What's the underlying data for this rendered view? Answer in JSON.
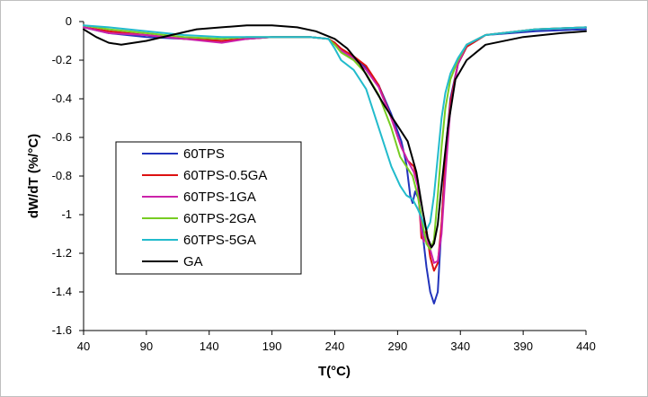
{
  "chart_data": {
    "type": "line",
    "title": "",
    "xlabel": "T(°C)",
    "ylabel": "dW/dT (%/°C)",
    "xlim": [
      40,
      440
    ],
    "ylim": [
      -1.6,
      0
    ],
    "x_ticks": [
      40,
      90,
      140,
      190,
      240,
      290,
      340,
      390,
      440
    ],
    "x_tick_labels": [
      "40",
      "90",
      "140",
      "190",
      "240",
      "290",
      "340",
      "390",
      "440"
    ],
    "y_ticks": [
      0,
      -0.2,
      -0.4,
      -0.6,
      -0.8,
      -1,
      -1.2,
      -1.4,
      -1.6
    ],
    "y_tick_labels": [
      "0",
      "-0.2",
      "-0.4",
      "-0.6",
      "-0.8",
      "-1",
      "-1.2",
      "-1.4",
      "-1.6"
    ],
    "grid": false,
    "legend_position": "left-center",
    "series": [
      {
        "name": "60TPS",
        "color": "#2233bb",
        "points": [
          [
            40,
            -0.03
          ],
          [
            60,
            -0.06
          ],
          [
            90,
            -0.08
          ],
          [
            120,
            -0.09
          ],
          [
            150,
            -0.1
          ],
          [
            170,
            -0.09
          ],
          [
            190,
            -0.08
          ],
          [
            220,
            -0.08
          ],
          [
            235,
            -0.09
          ],
          [
            240,
            -0.11
          ],
          [
            245,
            -0.15
          ],
          [
            255,
            -0.19
          ],
          [
            265,
            -0.24
          ],
          [
            275,
            -0.33
          ],
          [
            285,
            -0.48
          ],
          [
            293,
            -0.62
          ],
          [
            297,
            -0.74
          ],
          [
            300,
            -0.9
          ],
          [
            302,
            -0.94
          ],
          [
            304,
            -0.88
          ],
          [
            307,
            -0.92
          ],
          [
            310,
            -1.1
          ],
          [
            313,
            -1.27
          ],
          [
            316,
            -1.4
          ],
          [
            319,
            -1.46
          ],
          [
            322,
            -1.4
          ],
          [
            325,
            -1.05
          ],
          [
            328,
            -0.7
          ],
          [
            332,
            -0.4
          ],
          [
            338,
            -0.22
          ],
          [
            345,
            -0.13
          ],
          [
            360,
            -0.07
          ],
          [
            400,
            -0.05
          ],
          [
            440,
            -0.04
          ]
        ]
      },
      {
        "name": "60TPS-0.5GA",
        "color": "#dd1111",
        "points": [
          [
            40,
            -0.03
          ],
          [
            60,
            -0.05
          ],
          [
            90,
            -0.07
          ],
          [
            120,
            -0.09
          ],
          [
            150,
            -0.1
          ],
          [
            170,
            -0.09
          ],
          [
            190,
            -0.08
          ],
          [
            220,
            -0.08
          ],
          [
            235,
            -0.09
          ],
          [
            240,
            -0.11
          ],
          [
            245,
            -0.14
          ],
          [
            255,
            -0.18
          ],
          [
            265,
            -0.23
          ],
          [
            275,
            -0.33
          ],
          [
            285,
            -0.5
          ],
          [
            293,
            -0.65
          ],
          [
            298,
            -0.72
          ],
          [
            303,
            -0.75
          ],
          [
            306,
            -0.82
          ],
          [
            309,
            -1.12
          ],
          [
            311,
            -1.13
          ],
          [
            313,
            -1.08
          ],
          [
            316,
            -1.22
          ],
          [
            319,
            -1.29
          ],
          [
            322,
            -1.25
          ],
          [
            325,
            -1.05
          ],
          [
            328,
            -0.72
          ],
          [
            332,
            -0.42
          ],
          [
            338,
            -0.22
          ],
          [
            345,
            -0.13
          ],
          [
            360,
            -0.07
          ],
          [
            400,
            -0.04
          ],
          [
            440,
            -0.03
          ]
        ]
      },
      {
        "name": "60TPS-1GA",
        "color": "#cc22aa",
        "points": [
          [
            40,
            -0.03
          ],
          [
            60,
            -0.06
          ],
          [
            90,
            -0.07
          ],
          [
            120,
            -0.09
          ],
          [
            150,
            -0.11
          ],
          [
            170,
            -0.09
          ],
          [
            190,
            -0.08
          ],
          [
            220,
            -0.08
          ],
          [
            235,
            -0.09
          ],
          [
            240,
            -0.12
          ],
          [
            245,
            -0.15
          ],
          [
            255,
            -0.19
          ],
          [
            265,
            -0.25
          ],
          [
            275,
            -0.34
          ],
          [
            285,
            -0.5
          ],
          [
            293,
            -0.65
          ],
          [
            298,
            -0.72
          ],
          [
            303,
            -0.78
          ],
          [
            306,
            -0.85
          ],
          [
            309,
            -1.08
          ],
          [
            311,
            -1.14
          ],
          [
            313,
            -1.1
          ],
          [
            316,
            -1.18
          ],
          [
            319,
            -1.25
          ],
          [
            322,
            -1.24
          ],
          [
            325,
            -1.1
          ],
          [
            328,
            -0.8
          ],
          [
            332,
            -0.45
          ],
          [
            338,
            -0.22
          ],
          [
            345,
            -0.12
          ],
          [
            360,
            -0.07
          ],
          [
            400,
            -0.04
          ],
          [
            440,
            -0.03
          ]
        ]
      },
      {
        "name": "60TPS-2GA",
        "color": "#77cc22",
        "points": [
          [
            40,
            -0.02
          ],
          [
            60,
            -0.04
          ],
          [
            90,
            -0.06
          ],
          [
            120,
            -0.08
          ],
          [
            150,
            -0.09
          ],
          [
            170,
            -0.08
          ],
          [
            190,
            -0.08
          ],
          [
            220,
            -0.08
          ],
          [
            235,
            -0.09
          ],
          [
            240,
            -0.12
          ],
          [
            245,
            -0.16
          ],
          [
            255,
            -0.2
          ],
          [
            265,
            -0.27
          ],
          [
            275,
            -0.38
          ],
          [
            285,
            -0.55
          ],
          [
            292,
            -0.7
          ],
          [
            297,
            -0.75
          ],
          [
            302,
            -0.8
          ],
          [
            306,
            -0.9
          ],
          [
            310,
            -1.05
          ],
          [
            313,
            -1.15
          ],
          [
            316,
            -1.18
          ],
          [
            319,
            -1.13
          ],
          [
            322,
            -0.9
          ],
          [
            325,
            -0.65
          ],
          [
            328,
            -0.45
          ],
          [
            332,
            -0.3
          ],
          [
            338,
            -0.2
          ],
          [
            345,
            -0.12
          ],
          [
            360,
            -0.07
          ],
          [
            400,
            -0.04
          ],
          [
            440,
            -0.03
          ]
        ]
      },
      {
        "name": "60TPS-5GA",
        "color": "#22bbcc",
        "points": [
          [
            40,
            -0.02
          ],
          [
            60,
            -0.03
          ],
          [
            90,
            -0.05
          ],
          [
            120,
            -0.07
          ],
          [
            150,
            -0.08
          ],
          [
            170,
            -0.08
          ],
          [
            190,
            -0.08
          ],
          [
            220,
            -0.08
          ],
          [
            235,
            -0.09
          ],
          [
            240,
            -0.14
          ],
          [
            245,
            -0.2
          ],
          [
            255,
            -0.25
          ],
          [
            265,
            -0.35
          ],
          [
            275,
            -0.55
          ],
          [
            285,
            -0.75
          ],
          [
            292,
            -0.85
          ],
          [
            297,
            -0.9
          ],
          [
            302,
            -0.92
          ],
          [
            306,
            -0.97
          ],
          [
            310,
            -1.03
          ],
          [
            313,
            -1.08
          ],
          [
            316,
            -1.04
          ],
          [
            319,
            -0.9
          ],
          [
            322,
            -0.7
          ],
          [
            325,
            -0.5
          ],
          [
            328,
            -0.37
          ],
          [
            332,
            -0.27
          ],
          [
            338,
            -0.19
          ],
          [
            345,
            -0.12
          ],
          [
            360,
            -0.07
          ],
          [
            400,
            -0.04
          ],
          [
            440,
            -0.03
          ]
        ]
      },
      {
        "name": "GA",
        "color": "#000000",
        "points": [
          [
            40,
            -0.04
          ],
          [
            50,
            -0.08
          ],
          [
            60,
            -0.11
          ],
          [
            70,
            -0.12
          ],
          [
            90,
            -0.1
          ],
          [
            110,
            -0.07
          ],
          [
            130,
            -0.04
          ],
          [
            150,
            -0.03
          ],
          [
            170,
            -0.02
          ],
          [
            190,
            -0.02
          ],
          [
            210,
            -0.03
          ],
          [
            225,
            -0.05
          ],
          [
            240,
            -0.09
          ],
          [
            250,
            -0.14
          ],
          [
            260,
            -0.22
          ],
          [
            270,
            -0.33
          ],
          [
            280,
            -0.44
          ],
          [
            290,
            -0.54
          ],
          [
            298,
            -0.62
          ],
          [
            305,
            -0.78
          ],
          [
            310,
            -0.98
          ],
          [
            314,
            -1.12
          ],
          [
            317,
            -1.17
          ],
          [
            319,
            -1.15
          ],
          [
            322,
            -1.05
          ],
          [
            325,
            -0.85
          ],
          [
            330,
            -0.55
          ],
          [
            336,
            -0.3
          ],
          [
            345,
            -0.2
          ],
          [
            360,
            -0.12
          ],
          [
            390,
            -0.08
          ],
          [
            420,
            -0.06
          ],
          [
            440,
            -0.05
          ]
        ]
      }
    ]
  }
}
